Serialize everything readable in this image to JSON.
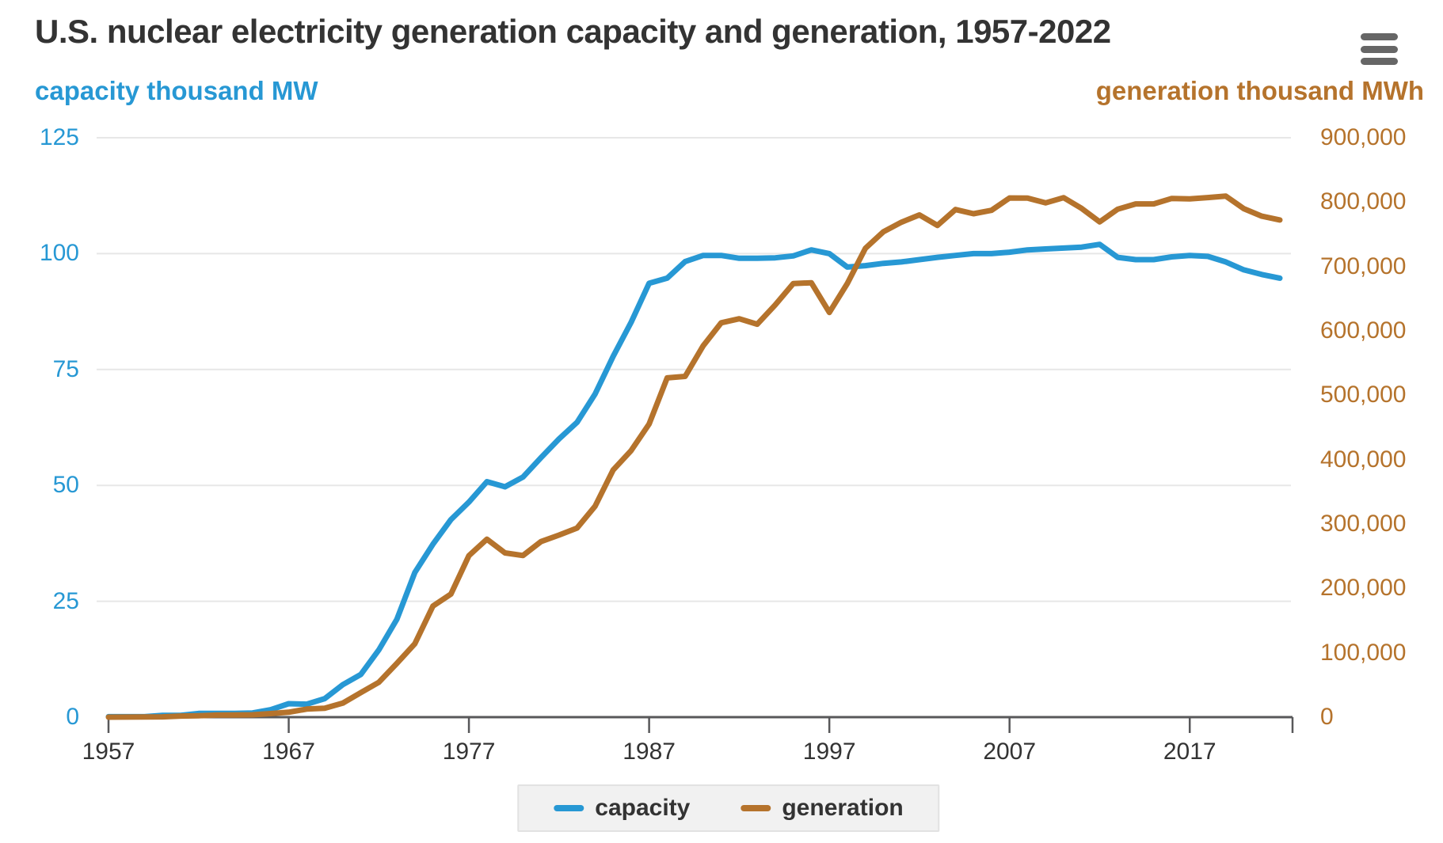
{
  "icons": {
    "menu": "hamburger-menu"
  },
  "colors": {
    "capacity_blue": "#2798d4",
    "generation_brown": "#b5732c",
    "title_text": "#333333",
    "axis_line": "#58585a",
    "gridline": "#e7e7e7"
  },
  "chart_data": {
    "type": "line",
    "title": "U.S. nuclear electricity generation capacity and generation, 1957-2022",
    "grid": true,
    "legend_position": "bottom",
    "x_range": [
      1957,
      2022
    ],
    "x_tick_labels": [
      "1957",
      "1967",
      "1977",
      "1987",
      "1997",
      "2007",
      "2017"
    ],
    "y_left": {
      "label": "capacity thousand MW",
      "min": 0,
      "max": 125,
      "tick_labels": [
        "125",
        "100",
        "75",
        "50",
        "25",
        "0"
      ]
    },
    "y_right": {
      "label": "generation thousand MWh",
      "min": 0,
      "max": 900000,
      "tick_labels": [
        "900,000",
        "800,000",
        "700,000",
        "600,000",
        "500,000",
        "400,000",
        "300,000",
        "200,000",
        "100,000",
        "0"
      ]
    },
    "x": [
      1957,
      1958,
      1959,
      1960,
      1961,
      1962,
      1963,
      1964,
      1965,
      1966,
      1967,
      1968,
      1969,
      1970,
      1971,
      1972,
      1973,
      1974,
      1975,
      1976,
      1977,
      1978,
      1979,
      1980,
      1981,
      1982,
      1983,
      1984,
      1985,
      1986,
      1987,
      1988,
      1989,
      1990,
      1991,
      1992,
      1993,
      1994,
      1995,
      1996,
      1997,
      1998,
      1999,
      2000,
      2001,
      2002,
      2003,
      2004,
      2005,
      2006,
      2007,
      2008,
      2009,
      2010,
      2011,
      2012,
      2013,
      2014,
      2015,
      2016,
      2017,
      2018,
      2019,
      2020,
      2021,
      2022
    ],
    "series": [
      {
        "name": "capacity",
        "axis": "left",
        "color": "#2798d4",
        "values": [
          0.1,
          0.1,
          0.1,
          0.4,
          0.4,
          0.8,
          0.8,
          0.8,
          0.9,
          1.6,
          2.9,
          2.8,
          4.0,
          7.0,
          9.2,
          14.5,
          21.1,
          31.2,
          37.3,
          42.6,
          46.4,
          50.8,
          49.7,
          51.8,
          56.0,
          60.0,
          63.6,
          69.7,
          77.8,
          85.2,
          93.6,
          94.7,
          98.3,
          99.6,
          99.6,
          99.0,
          99.0,
          99.1,
          99.5,
          100.8,
          100.0,
          97.1,
          97.4,
          97.9,
          98.2,
          98.7,
          99.2,
          99.6,
          100.0,
          100.0,
          100.3,
          100.8,
          101.0,
          101.2,
          101.4,
          102.0,
          99.2,
          98.7,
          98.7,
          99.3,
          99.6,
          99.4,
          98.2,
          96.5,
          95.5,
          94.7
        ]
      },
      {
        "name": "generation",
        "axis": "right",
        "color": "#b5732c",
        "values": [
          10,
          165,
          188,
          518,
          1692,
          2270,
          3212,
          3343,
          3657,
          5520,
          7655,
          12528,
          13928,
          21804,
          38105,
          54091,
          83479,
          113976,
          172505,
          191104,
          250883,
          276403,
          255155,
          251116,
          272674,
          282773,
          293677,
          327634,
          383691,
          414038,
          455270,
          526973,
          529355,
          576862,
          612565,
          618776,
          610291,
          640440,
          673402,
          674729,
          628644,
          673702,
          728254,
          753893,
          768826,
          780064,
          763733,
          788528,
          781986,
          787219,
          806425,
          806208,
          798855,
          806968,
          790204,
          769331,
          789016,
          797166,
          797178,
          805694,
          804950,
          807084,
          809409,
          789879,
          778152,
          772221
        ]
      }
    ]
  }
}
